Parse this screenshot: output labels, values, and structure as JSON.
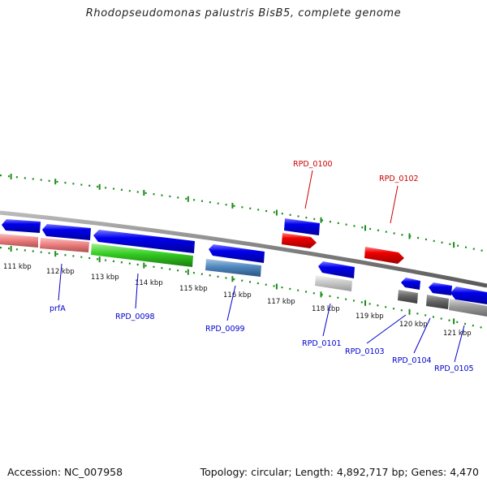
{
  "map": {
    "title": "Rhodopseudomonas palustris BisB5, complete genome",
    "accession": "Accession: NC_007958",
    "summary": "Topology: circular; Length: 4,892,717 bp; Genes: 4,470"
  },
  "scale_labels": [
    "111 kbp",
    "112 kbp",
    "113 kbp",
    "114 kbp",
    "115 kbp",
    "116 kbp",
    "117 kbp",
    "118 kbp",
    "119 kbp",
    "120 kbp",
    "121 kbp"
  ],
  "gene_labels": {
    "blue": [
      "prfA",
      "RPD_0098",
      "RPD_0099",
      "RPD_0101",
      "RPD_0103",
      "RPD_0104",
      "RPD_0105"
    ],
    "red": [
      "RPD_0100",
      "RPD_0102"
    ]
  },
  "colors": {
    "cds": "#0000ee",
    "rna": "#ee0000",
    "backbone": "#888888",
    "ticks": "#1a8c1a",
    "blue_label": "#0000cc",
    "red_label": "#cc0000"
  }
}
